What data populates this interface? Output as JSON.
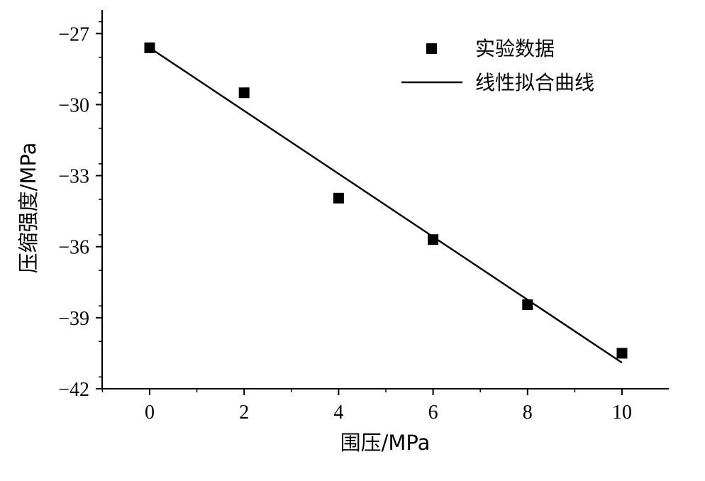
{
  "chart_data": {
    "type": "scatter",
    "xlabel": "围压/MPa",
    "ylabel": "压缩强度/MPa",
    "xlim": [
      -1,
      11
    ],
    "ylim": [
      -42,
      -26
    ],
    "x_ticks": [
      0,
      2,
      4,
      6,
      8,
      10
    ],
    "y_ticks": [
      -27,
      -30,
      -33,
      -36,
      -39,
      -42
    ],
    "x_tick_labels": [
      "0",
      "2",
      "4",
      "6",
      "8",
      "10"
    ],
    "y_tick_labels": [
      "−27",
      "−30",
      "−33",
      "−36",
      "−39",
      "−42"
    ],
    "grid": false,
    "legend_position": "top-right",
    "series": [
      {
        "name": "实验数据",
        "kind": "scatter",
        "marker": "square",
        "color": "#000000",
        "x": [
          0,
          2,
          4,
          6,
          8,
          10
        ],
        "y": [
          -27.6,
          -29.5,
          -33.95,
          -35.7,
          -38.45,
          -40.5
        ]
      },
      {
        "name": "线性拟合曲线",
        "kind": "line",
        "color": "#000000",
        "x": [
          0,
          10
        ],
        "y": [
          -27.6,
          -40.9
        ]
      }
    ]
  }
}
